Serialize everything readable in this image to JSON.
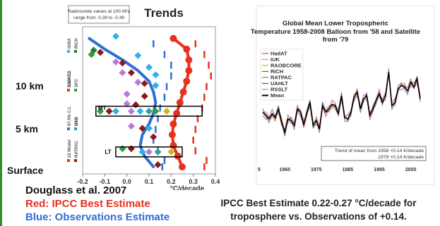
{
  "captions": {
    "left_author": "Douglass et al. 2007",
    "left_red": "Red: IPCC Best Estimate",
    "left_blue": "Blue: Observations Estimate",
    "bottom_line1": "IPCC Best Estimate 0.22-0.27 °C/decade for",
    "bottom_line2": "troposphere vs. Observations of +0.14."
  },
  "altitude_labels": [
    "10 km",
    "5 km",
    "Surface"
  ],
  "chart_data": [
    {
      "type": "scatter",
      "title": "Trends",
      "note": "Radiosonde values at 100 hPa range from -0.39 to -0.49",
      "xlabel": "°C/decade",
      "xticks": [
        "-0.2",
        "-0.1",
        "0.0",
        "0.1",
        "0.2",
        "0.3",
        "0.4"
      ],
      "xlim": [
        -0.2,
        0.4
      ],
      "box_labels": [
        "MT",
        "LT"
      ],
      "legend": [
        "IGBA",
        "RICH",
        "HadAT2",
        "SFC",
        "2.5% C.I.",
        "RSS",
        "97.5% C.I.",
        "UAH",
        "22 Model",
        "RATPAC"
      ],
      "legend_colors": [
        "#2fb0e6",
        "#2a7a3a",
        "#b87ad8",
        "#2e9e3a",
        "#e8301e",
        "#c8b820",
        "#2e6fd6",
        "#2ea0a0",
        "#e8301e",
        "#8b1a1a"
      ],
      "colors": {
        "model": "#e8301e",
        "observations": "#2e6fd6"
      },
      "series": [
        {
          "name": "22 Model",
          "y": [
            0,
            1,
            2,
            3,
            4,
            5,
            6,
            7,
            8,
            9,
            10,
            11,
            12
          ],
          "x": [
            0.25,
            0.23,
            0.21,
            0.205,
            0.21,
            0.225,
            0.24,
            0.255,
            0.27,
            0.28,
            0.28,
            0.27,
            0.21
          ]
        },
        {
          "name": "Observations",
          "y": [
            0,
            1,
            2,
            3,
            4,
            5,
            6,
            7,
            8,
            9,
            10,
            11,
            12
          ],
          "x": [
            0.12,
            0.08,
            0.06,
            0.07,
            0.1,
            0.12,
            0.13,
            0.12,
            0.1,
            0.05,
            -0.02,
            -0.1,
            -0.17
          ]
        }
      ],
      "points": [
        {
          "x": -0.05,
          "y": 12.2,
          "c": "#2fb0e6"
        },
        {
          "x": -0.15,
          "y": 10.9,
          "c": "#2a7a3a"
        },
        {
          "x": -0.12,
          "y": 10.7,
          "c": "#8b1a1a"
        },
        {
          "x": -0.16,
          "y": 10.5,
          "c": "#2e9e3a"
        },
        {
          "x": 0.05,
          "y": 10.4,
          "c": "#2fb0e6"
        },
        {
          "x": -0.05,
          "y": 9.8,
          "c": "#b87ad8"
        },
        {
          "x": -0.02,
          "y": 9.7,
          "c": "#8b1a1a"
        },
        {
          "x": 0.1,
          "y": 9.3,
          "c": "#2fb0e6"
        },
        {
          "x": -0.02,
          "y": 8.8,
          "c": "#b87ad8"
        },
        {
          "x": 0.02,
          "y": 8.8,
          "c": "#8b1a1a"
        },
        {
          "x": 0.13,
          "y": 8.6,
          "c": "#2fb0e6"
        },
        {
          "x": 0.05,
          "y": 7.9,
          "c": "#b87ad8"
        },
        {
          "x": 0.08,
          "y": 7.8,
          "c": "#8b1a1a"
        },
        {
          "x": 0.13,
          "y": 7.6,
          "c": "#2fb0e6"
        },
        {
          "x": 0.0,
          "y": 6.8,
          "c": "#b87ad8"
        },
        {
          "x": 0.08,
          "y": 6.6,
          "c": "#8b1a1a"
        },
        {
          "x": 0.0,
          "y": 5.9,
          "c": "#b87ad8"
        },
        {
          "x": 0.04,
          "y": 5.8,
          "c": "#8b1a1a"
        },
        {
          "x": -0.12,
          "y": 5.2,
          "c": "#2e9e3a"
        },
        {
          "x": -0.08,
          "y": 5.2,
          "c": "#8b1a1a"
        },
        {
          "x": -0.05,
          "y": 5.2,
          "c": "#2fb0e6"
        },
        {
          "x": 0.02,
          "y": 5.2,
          "c": "#b87ad8"
        },
        {
          "x": 0.06,
          "y": 5.2,
          "c": "#2fb0e6"
        },
        {
          "x": 0.1,
          "y": 5.2,
          "c": "#2ea0a0"
        },
        {
          "x": 0.13,
          "y": 5.2,
          "c": "#2e9e3a"
        },
        {
          "x": 0.18,
          "y": 5.2,
          "c": "#c8b820"
        },
        {
          "x": 0.02,
          "y": 3.8,
          "c": "#b87ad8"
        },
        {
          "x": 0.07,
          "y": 3.6,
          "c": "#8b1a1a"
        },
        {
          "x": 0.1,
          "y": 3.6,
          "c": "#2fb0e6"
        },
        {
          "x": 0.12,
          "y": 2.8,
          "c": "#8b1a1a"
        },
        {
          "x": -0.02,
          "y": 1.7,
          "c": "#2e9e3a"
        },
        {
          "x": 0.02,
          "y": 1.7,
          "c": "#8b1a1a"
        },
        {
          "x": 0.07,
          "y": 1.4,
          "c": "#2fb0e6"
        },
        {
          "x": 0.1,
          "y": 1.4,
          "c": "#b87ad8"
        },
        {
          "x": 0.14,
          "y": 1.4,
          "c": "#2ea0a0"
        },
        {
          "x": 0.2,
          "y": 1.4,
          "c": "#c8b820"
        },
        {
          "x": 0.14,
          "y": 0.2,
          "c": "#8b1a1a"
        }
      ]
    },
    {
      "type": "line",
      "title": "Global Mean Lower Tropospheric Temperature 1958-2008 Balloon from '58 and Satellite from '79",
      "xticks": [
        "5",
        "1965",
        "1975",
        "1985",
        "1995",
        "2005"
      ],
      "xlim": [
        1958,
        2008
      ],
      "legend": [
        "HadAT",
        "IUK",
        "RAOBCORE",
        "RICH",
        "RATPAC",
        "UAHLT",
        "RSSLT",
        "Mean"
      ],
      "legend_colors": [
        "#d44",
        "#c080c0",
        "#e2b000",
        "#2e8b2e",
        "#d06060",
        "#4050c0",
        "#9a9a9a",
        "#000000"
      ],
      "annotation": "Trend of mean from 1958 +0.14 K/decade\n1979 +0.14 K/decade",
      "annotation_line1": "Trend of mean from 1958 +0.14 K/decade",
      "annotation_line2": "1979 +0.14 K/decade",
      "x": [
        1958,
        1959,
        1960,
        1961,
        1962,
        1963,
        1964,
        1965,
        1966,
        1967,
        1968,
        1969,
        1970,
        1971,
        1972,
        1973,
        1974,
        1975,
        1976,
        1977,
        1978,
        1979,
        1980,
        1981,
        1982,
        1983,
        1984,
        1985,
        1986,
        1987,
        1988,
        1989,
        1990,
        1991,
        1992,
        1993,
        1994,
        1995,
        1996,
        1997,
        1998,
        1999,
        2000,
        2001,
        2002,
        2003,
        2004,
        2005,
        2006,
        2007,
        2008
      ],
      "mean": [
        -0.1,
        -0.15,
        -0.2,
        -0.12,
        -0.18,
        -0.05,
        -0.25,
        -0.4,
        -0.2,
        -0.22,
        -0.3,
        -0.05,
        -0.1,
        -0.28,
        -0.12,
        0.05,
        -0.3,
        -0.22,
        -0.35,
        0.0,
        -0.1,
        -0.05,
        0.02,
        0.0,
        -0.12,
        0.15,
        -0.18,
        -0.2,
        -0.1,
        0.12,
        0.2,
        -0.05,
        0.1,
        0.15,
        -0.15,
        -0.05,
        0.08,
        0.18,
        0.05,
        0.15,
        0.5,
        0.0,
        0.05,
        0.25,
        0.3,
        0.28,
        0.22,
        0.35,
        0.28,
        0.4,
        0.1
      ]
    }
  ]
}
